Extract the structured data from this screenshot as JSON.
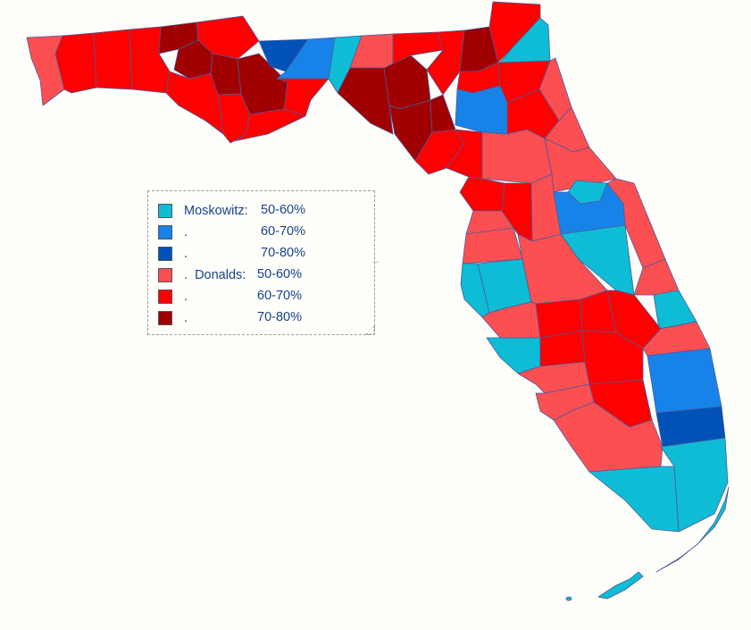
{
  "colors": {
    "moskowitz_50_60": "#0ebcd6",
    "moskowitz_60_70": "#1783e8",
    "moskowitz_70_80": "#0052b8",
    "donalds_50_60": "#fb4f52",
    "donalds_60_70": "#ff0000",
    "donalds_70_80": "#a00000",
    "border": "#4a5a9a",
    "background": "#fefefb"
  },
  "legend": {
    "items": [
      {
        "prefix": "Moskowitz: ",
        "range": "50-60%",
        "color_key": "moskowitz_50_60"
      },
      {
        "prefix": ".",
        "range": "60-70%",
        "color_key": "moskowitz_60_70"
      },
      {
        "prefix": ".",
        "range": "70-80%",
        "color_key": "moskowitz_70_80"
      },
      {
        "prefix": ".  Donalds: ",
        "range": "50-60%",
        "color_key": "donalds_50_60"
      },
      {
        "prefix": ".",
        "range": "60-70%",
        "color_key": "donalds_60_70"
      },
      {
        "prefix": ".",
        "range": "70-80%",
        "color_key": "donalds_70_80"
      }
    ]
  }
}
